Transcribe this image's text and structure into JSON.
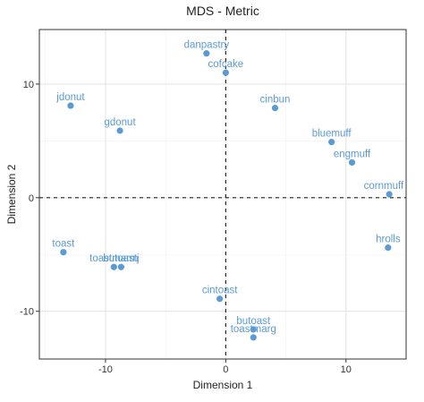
{
  "chart_data": {
    "type": "scatter",
    "title": "MDS - Metric",
    "xlabel": "Dimension 1",
    "ylabel": "Dimension 2",
    "xlim": [
      -15.5,
      15.0
    ],
    "ylim": [
      -14.2,
      14.8
    ],
    "xticks": [
      -10,
      0,
      10
    ],
    "yticks": [
      -10,
      0,
      10
    ],
    "grid": true,
    "reference_lines": {
      "x": 0,
      "y": 0,
      "style": "dashed"
    },
    "point_color": "#5b9bd5",
    "points": [
      {
        "label": "danpastry",
        "x": -1.6,
        "y": 12.7
      },
      {
        "label": "cofcake",
        "x": 0.0,
        "y": 11.0
      },
      {
        "label": "jdonut",
        "x": -12.9,
        "y": 8.1
      },
      {
        "label": "gdonut",
        "x": -8.8,
        "y": 5.9
      },
      {
        "label": "cinbun",
        "x": 4.1,
        "y": 7.9
      },
      {
        "label": "bluemuff",
        "x": 8.8,
        "y": 4.9
      },
      {
        "label": "engmuff",
        "x": 10.5,
        "y": 3.1
      },
      {
        "label": "cornmuff",
        "x": 13.6,
        "y": 0.3
      },
      {
        "label": "toast",
        "x": -13.5,
        "y": -4.8
      },
      {
        "label": "toastmarm",
        "x": -9.3,
        "y": -6.1
      },
      {
        "label": "butoastj",
        "x": -8.7,
        "y": -6.1
      },
      {
        "label": "hrolls",
        "x": 13.5,
        "y": -4.4
      },
      {
        "label": "cintoast",
        "x": -0.5,
        "y": -8.9
      },
      {
        "label": "butoast",
        "x": 2.3,
        "y": -11.6
      },
      {
        "label": "toastmarg",
        "x": 2.3,
        "y": -12.3
      }
    ]
  }
}
